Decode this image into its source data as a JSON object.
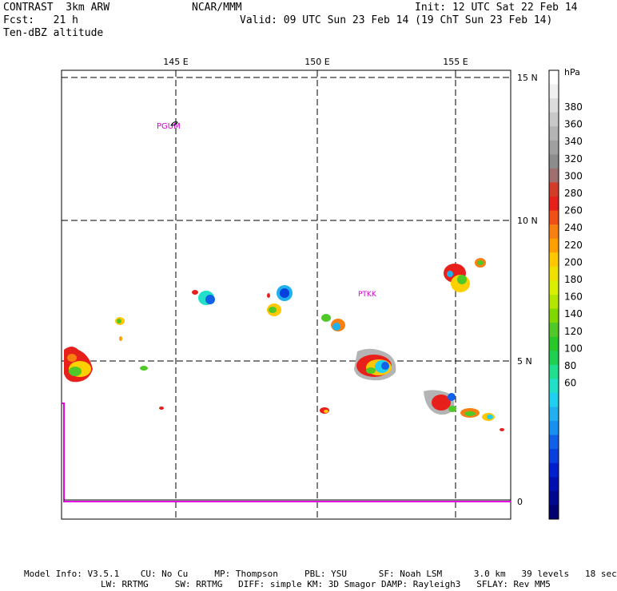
{
  "header": {
    "model": "CONTRAST  3km ARW",
    "fcst": "Fcst:   21 h",
    "field": "Ten-dBZ altitude",
    "org": "NCAR/MMM",
    "init": "Init: 12 UTC Sat 22 Feb 14",
    "valid": "Valid: 09 UTC Sun 23 Feb 14 (19 ChT Sun 23 Feb 14)"
  },
  "map": {
    "lon_labels": [
      "145 E",
      "150 E",
      "155 E"
    ],
    "lat_labels": [
      "15 N",
      "10 N",
      "5 N"
    ],
    "bottom_label": "0",
    "stations": [
      "PGUM",
      "PTKK"
    ]
  },
  "colorbar": {
    "unit": "hPa",
    "labels": [
      "380",
      "360",
      "340",
      "320",
      "300",
      "280",
      "260",
      "240",
      "220",
      "200",
      "180",
      "160",
      "140",
      "120",
      "100",
      "80",
      "60"
    ],
    "colors": [
      "#ffffff",
      "#f0f0f0",
      "#dcdcdc",
      "#c8c8c8",
      "#b4b4b4",
      "#a0a0a0",
      "#8c8c8c",
      "#a07070",
      "#d23c28",
      "#e8201c",
      "#f05018",
      "#f88010",
      "#ffa000",
      "#ffc800",
      "#f0e000",
      "#d8f000",
      "#b4e600",
      "#80d800",
      "#50c828",
      "#28c828",
      "#20d050",
      "#20e090",
      "#20e0c8",
      "#20d0f0",
      "#20b0f0",
      "#1890f0",
      "#1060e8",
      "#0840e0",
      "#0020d0",
      "#0010b0",
      "#000890",
      "#000070"
    ]
  },
  "footer": {
    "line1": "Model Info: V3.5.1    CU: No Cu     MP: Thompson     PBL: YSU      SF: Noah LSM      3.0 km   39 levels   18 sec",
    "line2": "LW: RRTMG     SW: RRTMG   DIFF: simple KM: 3D Smagor DAMP: Rayleigh3   SFLAY: Rev MM5"
  },
  "colors": {
    "accent": "#e000e0",
    "grid": "#000000"
  }
}
